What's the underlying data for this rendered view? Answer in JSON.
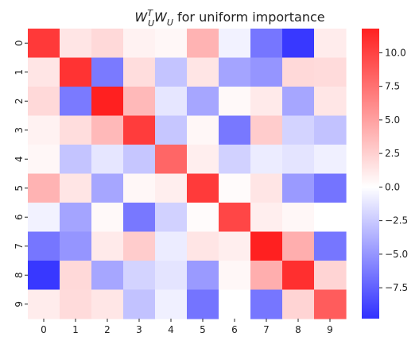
{
  "chart_data": {
    "type": "heatmap",
    "title_main": "W",
    "title_sup": "T",
    "title_sub": "U",
    "title_mid": "W",
    "title_sub2": "U",
    "title_rest": " for uniform importance",
    "x_ticks": [
      "0",
      "1",
      "2",
      "3",
      "4",
      "5",
      "6",
      "7",
      "8",
      "9"
    ],
    "y_ticks": [
      "0",
      "1",
      "2",
      "3",
      "4",
      "5",
      "6",
      "7",
      "8",
      "9"
    ],
    "colorbar": {
      "min": -9.8,
      "max": 11.8,
      "ticks": [
        -7.5,
        -5.0,
        -2.5,
        0.0,
        2.5,
        5.0,
        7.5,
        10.0
      ],
      "tick_labels": [
        "−7.5",
        "−5.0",
        "−2.5",
        "0.0",
        "2.5",
        "5.0",
        "7.5",
        "10.0"
      ]
    },
    "colormap": [
      "#3030ff",
      "#ffffff",
      "#ff2020"
    ],
    "values": [
      [
        10.5,
        1.4,
        2.0,
        0.7,
        0.4,
        4.0,
        -0.6,
        -6.5,
        -9.4,
        1.0
      ],
      [
        1.4,
        10.8,
        -6.3,
        1.8,
        -2.8,
        1.4,
        -4.3,
        -5.0,
        2.0,
        1.9
      ],
      [
        2.0,
        -6.3,
        11.8,
        3.7,
        -1.2,
        -4.2,
        0.3,
        1.1,
        -4.2,
        1.3
      ],
      [
        0.7,
        1.8,
        3.7,
        10.3,
        -2.7,
        0.4,
        -6.4,
        2.7,
        -2.1,
        -2.9
      ],
      [
        0.4,
        -2.8,
        -1.2,
        -2.7,
        8.1,
        0.9,
        -2.2,
        -0.9,
        -1.3,
        -0.7
      ],
      [
        4.0,
        1.4,
        -4.2,
        0.4,
        0.9,
        10.4,
        0.2,
        1.4,
        -4.8,
        -6.6
      ],
      [
        -0.6,
        -4.3,
        0.3,
        -6.4,
        -2.2,
        0.2,
        9.8,
        0.9,
        0.4,
        0.0
      ],
      [
        -6.5,
        -5.0,
        1.1,
        2.7,
        -0.9,
        1.4,
        0.9,
        11.8,
        4.3,
        -6.5
      ],
      [
        -9.4,
        2.0,
        -4.2,
        -2.1,
        -1.3,
        -4.8,
        0.4,
        4.3,
        11.0,
        2.3
      ],
      [
        1.0,
        1.9,
        1.3,
        -2.9,
        -0.7,
        -6.6,
        0.0,
        -6.5,
        2.3,
        8.6
      ]
    ]
  }
}
